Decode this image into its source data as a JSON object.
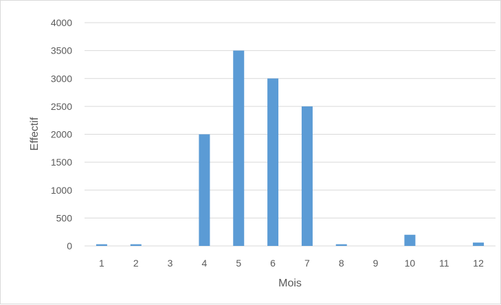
{
  "chart_data": {
    "type": "bar",
    "categories": [
      "1",
      "2",
      "3",
      "4",
      "5",
      "6",
      "7",
      "8",
      "9",
      "10",
      "11",
      "12"
    ],
    "values": [
      30,
      30,
      0,
      2000,
      3500,
      3000,
      2500,
      30,
      0,
      200,
      0,
      60
    ],
    "xlabel": "Mois",
    "ylabel": "Effectif",
    "ylim": [
      0,
      4000
    ],
    "yticks": [
      "0",
      "500",
      "1000",
      "1500",
      "2000",
      "2500",
      "3000",
      "3500",
      "4000"
    ],
    "grid": true,
    "legend": "none",
    "bar_color": "#5b9bd5",
    "grid_color": "#d9d9d9"
  }
}
